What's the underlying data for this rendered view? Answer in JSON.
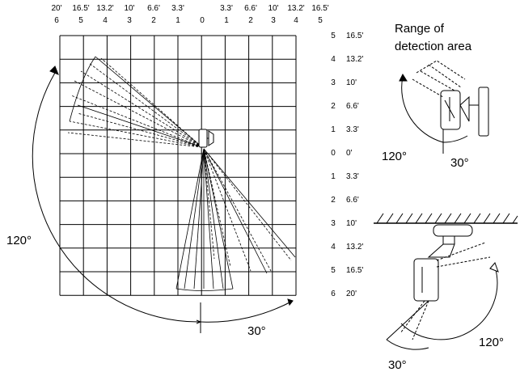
{
  "top_axis": {
    "feet": [
      "20'",
      "16.5'",
      "13.2'",
      "10'",
      "6.6'",
      "3.3'",
      "",
      "3.3'",
      "6.6'",
      "10'",
      "13.2'",
      "16.5'"
    ],
    "index": [
      "6",
      "5",
      "4",
      "3",
      "2",
      "1",
      "0",
      "1",
      "2",
      "3",
      "4",
      "5"
    ]
  },
  "right_axis": {
    "index": [
      "5",
      "4",
      "3",
      "2",
      "1",
      "0",
      "1",
      "2",
      "3",
      "4",
      "5",
      "6"
    ],
    "feet": [
      "16.5'",
      "13.2'",
      "10'",
      "6.6'",
      "3.3'",
      "0'",
      "3.3'",
      "6.6'",
      "10'",
      "13.2'",
      "16.5'",
      "20'"
    ]
  },
  "labels": {
    "main_left_angle": "120°",
    "main_bottom_angle": "30°",
    "range_title_line1": "Range of",
    "range_title_line2": "detection area",
    "top_view_left_angle": "120°",
    "top_view_right_angle": "30°",
    "side_view_right_angle": "120°",
    "side_view_bottom_angle": "30°"
  }
}
